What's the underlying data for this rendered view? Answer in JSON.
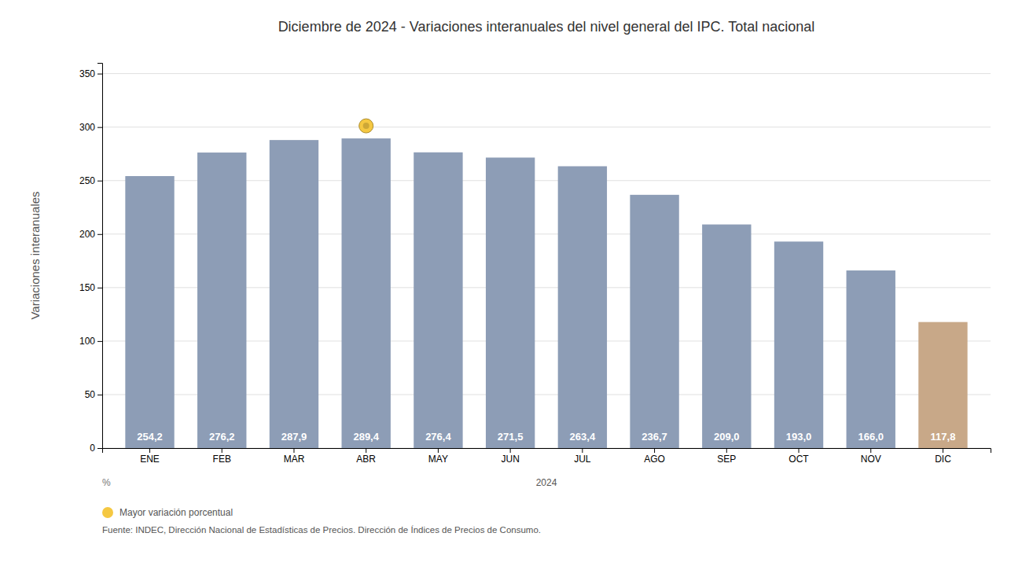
{
  "chart_data": {
    "type": "bar",
    "title": "Diciembre de 2024 - Variaciones interanuales del nivel general del IPC. Total nacional",
    "ylabel": "Variaciones interanuales",
    "xlabel": "2024",
    "categories": [
      "ENE",
      "FEB",
      "MAR",
      "ABR",
      "MAY",
      "JUN",
      "JUL",
      "AGO",
      "SEP",
      "OCT",
      "NOV",
      "DIC"
    ],
    "values": [
      254.2,
      276.2,
      287.9,
      289.4,
      276.4,
      271.5,
      263.4,
      236.7,
      209.0,
      193.0,
      166.0,
      117.8
    ],
    "value_labels": [
      "254,2",
      "276,2",
      "287,9",
      "289,4",
      "276,4",
      "271,5",
      "263,4",
      "236,7",
      "209,0",
      "193,0",
      "166,0",
      "117,8"
    ],
    "colors": [
      "#8d9db6",
      "#8d9db6",
      "#8d9db6",
      "#8d9db6",
      "#8d9db6",
      "#8d9db6",
      "#8d9db6",
      "#8d9db6",
      "#8d9db6",
      "#8d9db6",
      "#8d9db6",
      "#c8a888"
    ],
    "ylim": [
      0,
      360
    ],
    "yticks": [
      0,
      50,
      100,
      150,
      200,
      250,
      300,
      350
    ],
    "grid": true,
    "data_labels": true,
    "annotations": [
      {
        "text": "%"
      },
      {
        "text": "Mayor variación porcentual",
        "marker": "circle",
        "color": "#f5c842",
        "category": "ABR"
      },
      {
        "text": "Fuente: INDEC, Dirección Nacional de Estadísticas de Precios. Dirección de Índices de Precios de Consumo."
      }
    ]
  }
}
